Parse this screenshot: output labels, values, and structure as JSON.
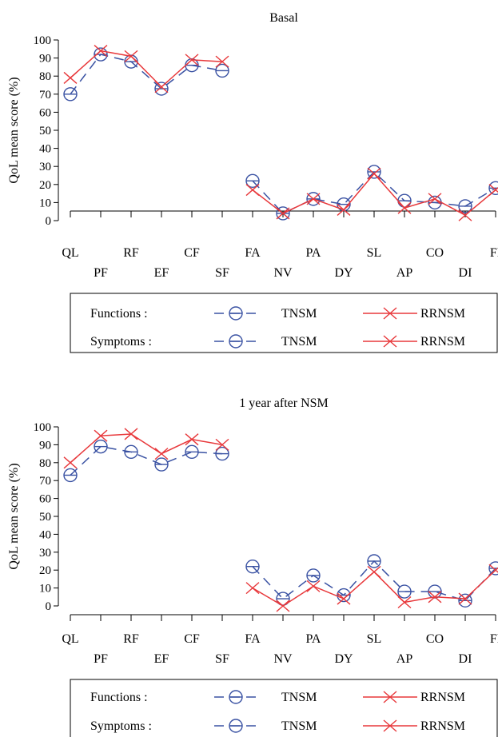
{
  "colors": {
    "tnsm": "#3a52a3",
    "rrnsm": "#e8383b",
    "axis": "#000000"
  },
  "chart_data": [
    {
      "type": "line",
      "title": "Basal",
      "ylabel": "QoL mean score (%)",
      "ylim": [
        0,
        100
      ],
      "yticks": [
        0,
        10,
        20,
        30,
        40,
        50,
        60,
        70,
        80,
        90,
        100
      ],
      "categories": [
        "QL",
        "PF",
        "RF",
        "EF",
        "CF",
        "SF",
        "FA",
        "NV",
        "PA",
        "DY",
        "SL",
        "AP",
        "CO",
        "DI",
        "FI"
      ],
      "function_categories": [
        "QL",
        "PF",
        "RF",
        "EF",
        "CF",
        "SF"
      ],
      "symptom_categories": [
        "FA",
        "NV",
        "PA",
        "DY",
        "SL",
        "AP",
        "CO",
        "DI",
        "FI"
      ],
      "series": [
        {
          "name": "TNSM",
          "group": "Functions",
          "marker": "circle",
          "style": "dashed",
          "values": [
            70,
            92,
            88,
            73,
            86,
            83,
            null,
            null,
            null,
            null,
            null,
            null,
            null,
            null,
            null
          ]
        },
        {
          "name": "RRNSM",
          "group": "Functions",
          "marker": "x",
          "style": "solid",
          "values": [
            79,
            94,
            91,
            74,
            89,
            88,
            null,
            null,
            null,
            null,
            null,
            null,
            null,
            null,
            null
          ]
        },
        {
          "name": "TNSM",
          "group": "Symptoms",
          "marker": "circle",
          "style": "dashed",
          "values": [
            null,
            null,
            null,
            null,
            null,
            null,
            22,
            4,
            12,
            9,
            27,
            11,
            10,
            8,
            18
          ]
        },
        {
          "name": "RRNSM",
          "group": "Symptoms",
          "marker": "x",
          "style": "solid",
          "values": [
            null,
            null,
            null,
            null,
            null,
            null,
            17,
            4,
            12,
            6,
            26,
            7,
            12,
            3,
            17
          ]
        }
      ],
      "legend": {
        "rows": [
          {
            "label": "Functions :",
            "items": [
              "TNSM",
              "RRNSM"
            ]
          },
          {
            "label": "Symptoms :",
            "items": [
              "TNSM",
              "RRNSM"
            ]
          }
        ]
      }
    },
    {
      "type": "line",
      "title": "1 year after NSM",
      "ylabel": "QoL mean score (%)",
      "ylim": [
        0,
        100
      ],
      "yticks": [
        0,
        10,
        20,
        30,
        40,
        50,
        60,
        70,
        80,
        90,
        100
      ],
      "categories": [
        "QL",
        "PF",
        "RF",
        "EF",
        "CF",
        "SF",
        "FA",
        "NV",
        "PA",
        "DY",
        "SL",
        "AP",
        "CO",
        "DI",
        "FI"
      ],
      "function_categories": [
        "QL",
        "PF",
        "RF",
        "EF",
        "CF",
        "SF"
      ],
      "symptom_categories": [
        "FA",
        "NV",
        "PA",
        "DY",
        "SL",
        "AP",
        "CO",
        "DI",
        "FI"
      ],
      "series": [
        {
          "name": "TNSM",
          "group": "Functions",
          "marker": "circle",
          "style": "dashed",
          "values": [
            73,
            89,
            86,
            79,
            86,
            85,
            null,
            null,
            null,
            null,
            null,
            null,
            null,
            null,
            null
          ]
        },
        {
          "name": "RRNSM",
          "group": "Functions",
          "marker": "x",
          "style": "solid",
          "values": [
            80,
            95,
            96,
            85,
            93,
            90,
            null,
            null,
            null,
            null,
            null,
            null,
            null,
            null,
            null
          ]
        },
        {
          "name": "TNSM",
          "group": "Symptoms",
          "marker": "circle",
          "style": "dashed",
          "values": [
            null,
            null,
            null,
            null,
            null,
            null,
            22,
            4,
            17,
            6,
            25,
            8,
            8,
            3,
            21
          ]
        },
        {
          "name": "RRNSM",
          "group": "Symptoms",
          "marker": "x",
          "style": "solid",
          "values": [
            null,
            null,
            null,
            null,
            null,
            null,
            10,
            0,
            11,
            4,
            19,
            2,
            5,
            4,
            20
          ]
        }
      ],
      "legend": {
        "rows": [
          {
            "label": "Functions :",
            "items": [
              "TNSM",
              "RRNSM"
            ]
          },
          {
            "label": "Symptoms :",
            "items": [
              "TNSM",
              "RRNSM"
            ]
          }
        ]
      }
    }
  ]
}
